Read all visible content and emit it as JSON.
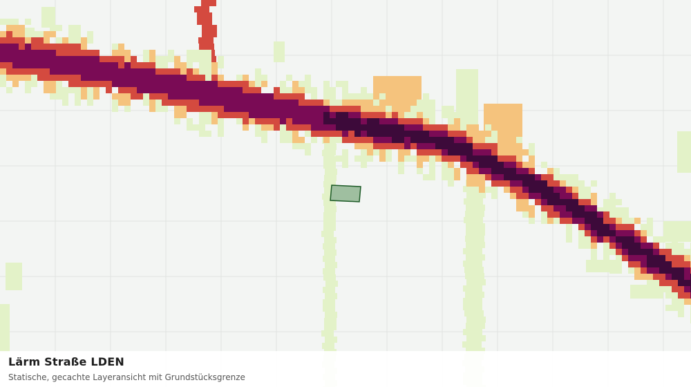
{
  "layer": {
    "title": "Lärm Straße LDEN",
    "subtitle": "Statische, gecachte Layeransicht mit Grundstücksgrenze"
  },
  "noise_classes": [
    {
      "name": "class-1",
      "color": "#e3f2c8"
    },
    {
      "name": "class-2",
      "color": "#f5c37d"
    },
    {
      "name": "class-3",
      "color": "#d44a3f"
    },
    {
      "name": "class-4",
      "color": "#7a0b55"
    },
    {
      "name": "class-5",
      "color": "#3d0a3a"
    }
  ],
  "map_colors": {
    "background": "#f3f5f3",
    "grid": "#e0e4e0",
    "parcel_fill": "#9fbfa0",
    "parcel_stroke": "#1c5a26"
  }
}
